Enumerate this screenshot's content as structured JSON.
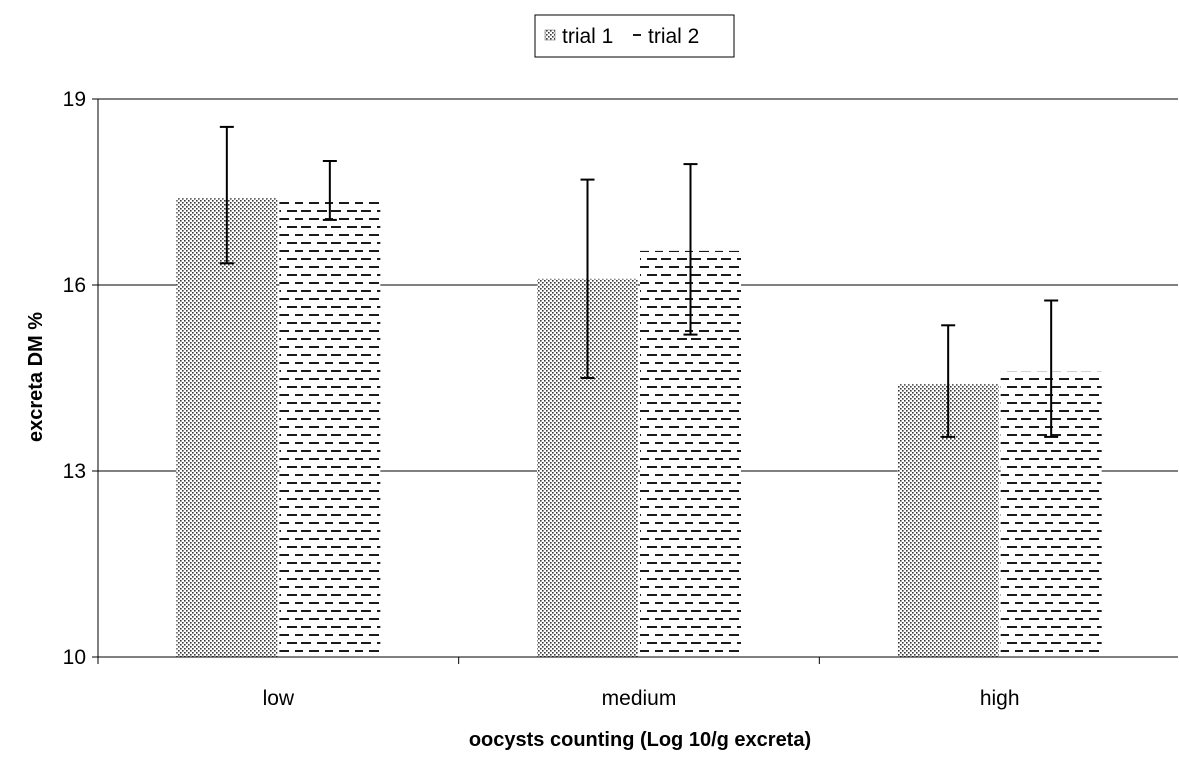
{
  "chart_data": {
    "type": "bar",
    "title": "",
    "xlabel": "oocysts counting (Log 10/g excreta)",
    "ylabel": "excreta DM %",
    "categories": [
      "low",
      "medium",
      "high"
    ],
    "ylim": [
      10,
      19
    ],
    "yticks": [
      10,
      13,
      16,
      19
    ],
    "grid": true,
    "legend_position": "top-center",
    "series": [
      {
        "name": "trial 1",
        "pattern": "dots",
        "values": [
          17.4,
          16.1,
          14.4
        ],
        "error_low": [
          16.35,
          14.5,
          13.55
        ],
        "error_high": [
          18.55,
          17.7,
          15.35
        ]
      },
      {
        "name": "trial 2",
        "pattern": "dashes",
        "values": [
          17.4,
          16.55,
          14.6
        ],
        "error_low": [
          17.05,
          15.2,
          13.55
        ],
        "error_high": [
          18.0,
          17.95,
          15.75
        ]
      }
    ],
    "colors": {
      "bar_fill": "#ffffff",
      "pattern_ink": "#3a3a3a",
      "grid": "#000000",
      "error_bar": "#000000"
    }
  }
}
